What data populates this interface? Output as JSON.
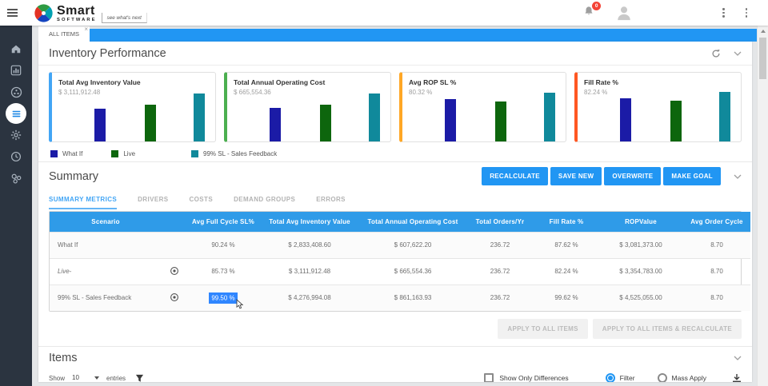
{
  "header": {
    "brand": {
      "title": "Smart",
      "subtitle": "SOFTWARE",
      "tagline": "see what's next"
    },
    "notifications": {
      "count": "0"
    }
  },
  "tab_bar": {
    "active_tab": "ALL ITEMS",
    "close": "×"
  },
  "inventory_performance": {
    "title": "Inventory Performance",
    "series_colors": [
      "#1b1ba6",
      "#0d660d",
      "#10899b"
    ],
    "legend": [
      "What If",
      "Live",
      "99% SL - Sales Feedback"
    ],
    "charts": [
      {
        "title": "Total Avg Inventory Value",
        "value": "$ 3,111,912.48",
        "accent": "#42a5f5",
        "bars_pct": [
          48,
          53,
          70
        ]
      },
      {
        "title": "Total Annual Operating Cost",
        "value": "$ 665,554.36",
        "accent": "#4caf50",
        "bars_pct": [
          49,
          54,
          70
        ]
      },
      {
        "title": "Avg ROP SL %",
        "value": "80.32 %",
        "accent": "#ffa726",
        "bars_pct": [
          62,
          58,
          71
        ]
      },
      {
        "title": "Fill Rate %",
        "value": "82.24 %",
        "accent": "#ff5722",
        "bars_pct": [
          63,
          59,
          72
        ]
      }
    ]
  },
  "chart_data": [
    {
      "type": "bar",
      "title": "Total Avg Inventory Value",
      "headline": "$ 3,111,912.48",
      "categories": [
        "What If",
        "Live",
        "99% SL - Sales Feedback"
      ],
      "values": [
        2833408.6,
        3111912.48,
        4276994.08
      ]
    },
    {
      "type": "bar",
      "title": "Total Annual Operating Cost",
      "headline": "$ 665,554.36",
      "categories": [
        "What If",
        "Live",
        "99% SL - Sales Feedback"
      ],
      "values": [
        607622.2,
        665554.36,
        861163.93
      ]
    },
    {
      "type": "bar",
      "title": "Avg ROP SL %",
      "headline": "80.32 %",
      "categories": [
        "What If",
        "Live",
        "99% SL - Sales Feedback"
      ],
      "values": [
        88,
        80.32,
        99
      ]
    },
    {
      "type": "bar",
      "title": "Fill Rate %",
      "headline": "82.24 %",
      "categories": [
        "What If",
        "Live",
        "99% SL - Sales Feedback"
      ],
      "values": [
        87.62,
        82.24,
        99.62
      ]
    }
  ],
  "summary": {
    "title": "Summary",
    "actions": [
      "RECALCULATE",
      "SAVE NEW",
      "OVERWRITE",
      "MAKE GOAL"
    ],
    "tabs": [
      "SUMMARY METRICS",
      "DRIVERS",
      "COSTS",
      "DEMAND GROUPS",
      "ERRORS"
    ],
    "active_tab_index": 0,
    "table": {
      "columns": [
        "Scenario",
        "",
        "Avg Full Cycle SL%",
        "Total Avg Inventory Value",
        "Total Annual Operating Cost",
        "Total Orders/Yr",
        "Fill Rate %",
        "ROPValue",
        "Avg Order Cycle"
      ],
      "rows": [
        {
          "scenario": "What If",
          "italic": false,
          "has_target_icon": false,
          "avg_full_cycle_sl": "90.24 %",
          "sl_selected": false,
          "total_avg_inventory_value": "$ 2,833,408.60",
          "total_annual_operating_cost": "$ 607,622.20",
          "total_orders_yr": "236.72",
          "fill_rate": "87.62 %",
          "rop_value": "$ 3,081,373.00",
          "avg_order_cycle": "8.70"
        },
        {
          "scenario": "Live-",
          "italic": true,
          "has_target_icon": true,
          "avg_full_cycle_sl": "85.73 %",
          "sl_selected": false,
          "total_avg_inventory_value": "$ 3,111,912.48",
          "total_annual_operating_cost": "$ 665,554.36",
          "total_orders_yr": "236.72",
          "fill_rate": "82.24 %",
          "rop_value": "$ 3,354,783.00",
          "avg_order_cycle": "8.70"
        },
        {
          "scenario": "99% SL - Sales Feedback",
          "italic": false,
          "has_target_icon": true,
          "avg_full_cycle_sl": "99.50 %",
          "sl_selected": true,
          "total_avg_inventory_value": "$ 4,276,994.08",
          "total_annual_operating_cost": "$ 861,163.93",
          "total_orders_yr": "236.72",
          "fill_rate": "99.62 %",
          "rop_value": "$ 4,525,055.00",
          "avg_order_cycle": "8.70"
        }
      ]
    },
    "footer_actions": [
      "APPLY TO ALL ITEMS",
      "APPLY TO ALL ITEMS & RECALCULATE"
    ]
  },
  "items": {
    "title": "Items",
    "show_label": "Show",
    "page_size": "10",
    "entries_label": "entries",
    "show_only_differences_label": "Show Only Differences",
    "filter_label": "Filter",
    "mass_apply_label": "Mass Apply"
  },
  "colors": {
    "accent_blue": "#2196f3",
    "table_header_blue": "#2f9be8",
    "selection_blue": "#2f86ff",
    "badge_red": "#f44336"
  }
}
